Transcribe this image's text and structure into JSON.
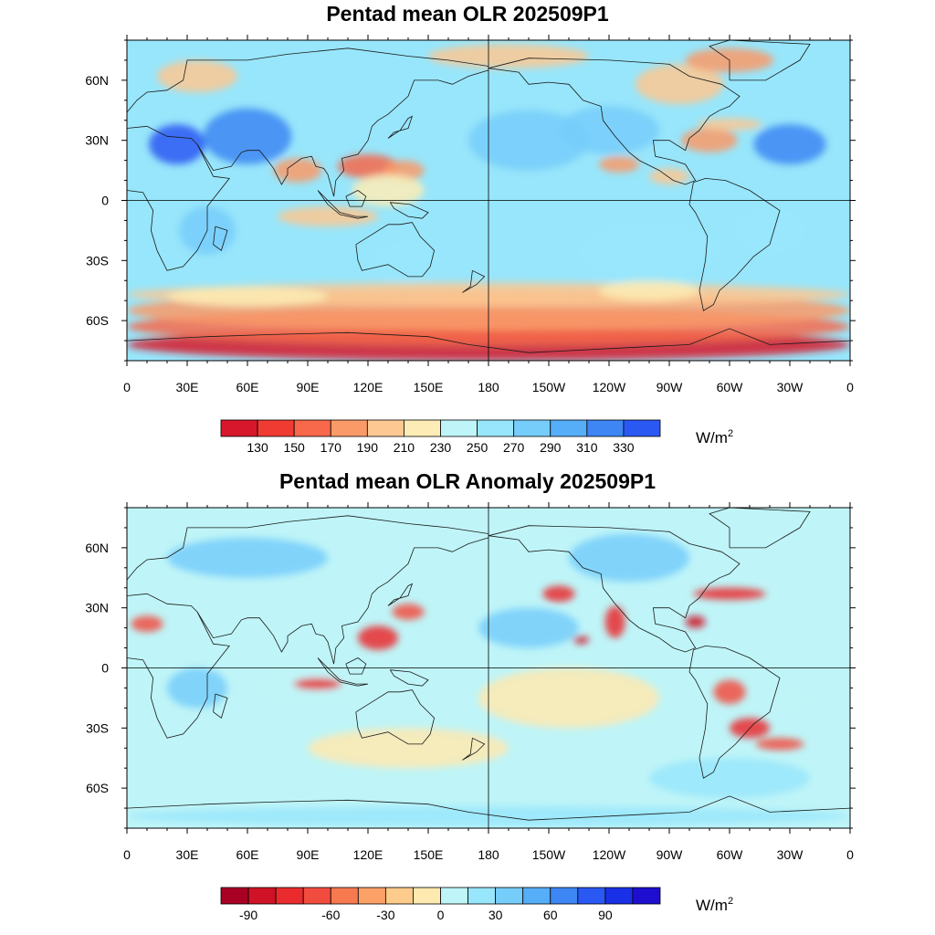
{
  "panels": [
    {
      "title": "Pentad mean OLR 202509P1",
      "lat_labels": [
        "60N",
        "30N",
        "0",
        "30S",
        "60S"
      ],
      "lon_labels": [
        "0",
        "30E",
        "60E",
        "90E",
        "120E",
        "150E",
        "180",
        "150W",
        "120W",
        "90W",
        "60W",
        "30W",
        "0"
      ],
      "colorbar": {
        "colors": [
          "#d7172b",
          "#f03b32",
          "#f7694a",
          "#fa9a68",
          "#fdc892",
          "#fdecb5",
          "#bff5f8",
          "#98e6fb",
          "#76cdfa",
          "#56adf8",
          "#3d86f3",
          "#2a58f2"
        ],
        "labels": [
          "130",
          "150",
          "170",
          "190",
          "210",
          "230",
          "250",
          "270",
          "290",
          "310",
          "330"
        ],
        "units": "W/m",
        "units_sup": "2"
      }
    },
    {
      "title": "Pentad mean OLR Anomaly 202509P1",
      "lat_labels": [
        "60N",
        "30N",
        "0",
        "30S",
        "60S"
      ],
      "lon_labels": [
        "0",
        "30E",
        "60E",
        "90E",
        "120E",
        "150E",
        "180",
        "150W",
        "120W",
        "90W",
        "60W",
        "30W",
        "0"
      ],
      "colorbar": {
        "colors": [
          "#a80024",
          "#cf1226",
          "#ea2b2d",
          "#f24c3f",
          "#f7794f",
          "#fca268",
          "#fdcb8b",
          "#fee9b0",
          "#bff5f8",
          "#98e6fb",
          "#76cdfa",
          "#56adf8",
          "#3d86f3",
          "#2a58f2",
          "#1a30e6",
          "#1e0fd0"
        ],
        "labels": [
          "-90",
          "",
          "",
          "-60",
          "",
          "-30",
          "",
          "0",
          "",
          "30",
          "",
          "60",
          "",
          "90",
          ""
        ],
        "units": "W/m",
        "units_sup": "2"
      }
    }
  ]
}
